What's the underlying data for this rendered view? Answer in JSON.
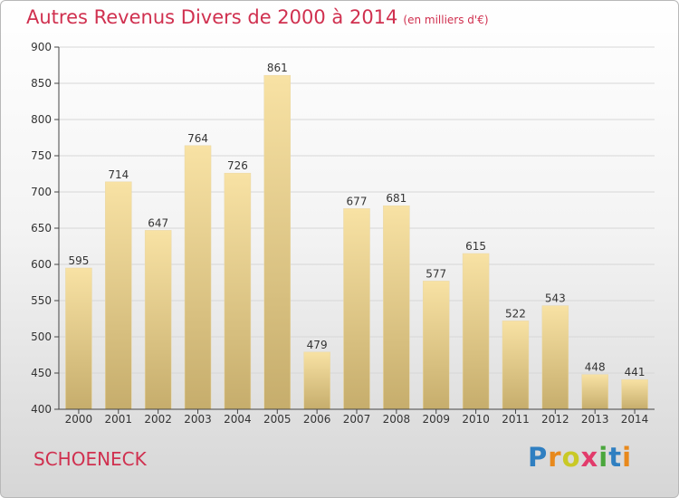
{
  "header": {
    "title": "Autres Revenus Divers de 2000 à 2014",
    "unit": "(en milliers d'€)"
  },
  "footer": {
    "city": "SCHOENECK",
    "logo_letters": [
      "P",
      "r",
      "o",
      "x",
      "i",
      "t",
      "i"
    ],
    "logo_colors": [
      "#2f7fc1",
      "#e8891c",
      "#c9c926",
      "#e23b6b",
      "#4aa63c",
      "#2f7fc1",
      "#e8891c"
    ]
  },
  "colors": {
    "title": "#d0304f",
    "bar_light": "#f8e2a4",
    "bar_dark": "#c6ad6c",
    "grid": "#d7d7d7",
    "axis": "#444444"
  },
  "chart_data": {
    "type": "bar",
    "categories": [
      "2000",
      "2001",
      "2002",
      "2003",
      "2004",
      "2005",
      "2006",
      "2007",
      "2008",
      "2009",
      "2010",
      "2011",
      "2012",
      "2013",
      "2014"
    ],
    "values": [
      595,
      714,
      647,
      764,
      726,
      861,
      479,
      677,
      681,
      577,
      615,
      522,
      543,
      448,
      441
    ],
    "title": "Autres Revenus Divers de 2000 à 2014",
    "subtitle": "(en milliers d'€)",
    "xlabel": "",
    "ylabel": "",
    "ylim": [
      400,
      900
    ],
    "yticks": [
      400,
      450,
      500,
      550,
      600,
      650,
      700,
      750,
      800,
      850,
      900
    ],
    "grid": true,
    "data_labels": true
  }
}
